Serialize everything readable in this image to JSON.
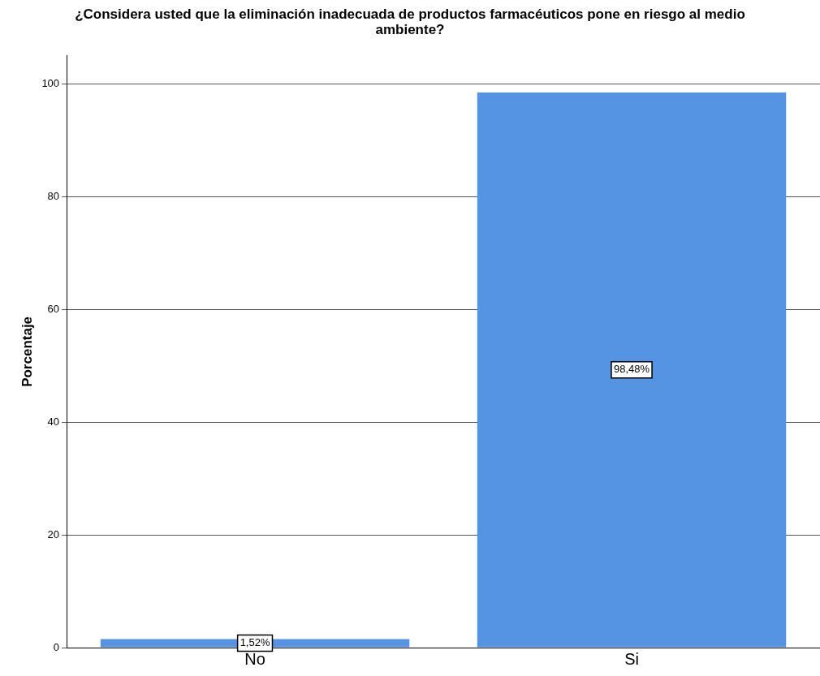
{
  "chart_data": {
    "type": "bar",
    "title": "¿Considera usted que la eliminación inadecuada de productos farmacéuticos pone en riesgo al medio ambiente?",
    "ylabel": "Porcentaje",
    "categories": [
      "No",
      "Si"
    ],
    "values": [
      1.52,
      98.48
    ],
    "value_labels": [
      "1,52%",
      "98,48%"
    ],
    "color": "#5594e2",
    "ylim": [
      0,
      105
    ],
    "yticks": [
      0,
      20,
      40,
      60,
      80,
      100
    ],
    "grid": "y",
    "legend": false
  }
}
